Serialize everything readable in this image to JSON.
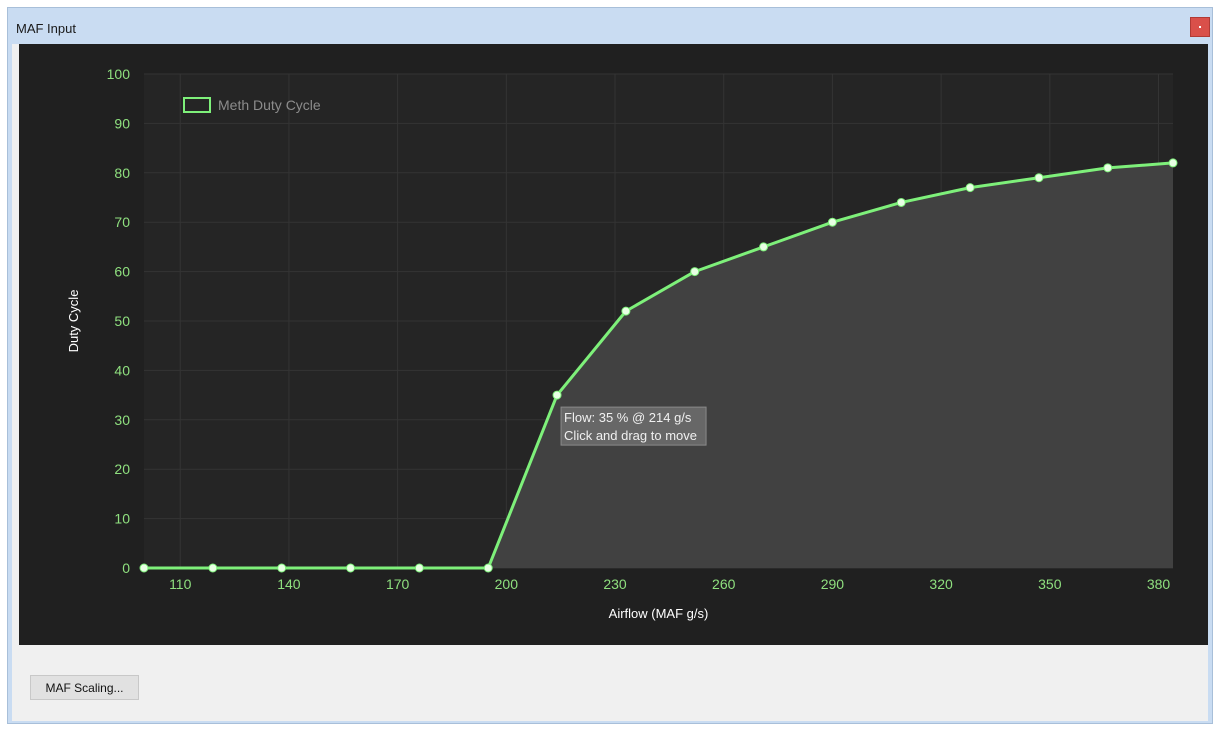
{
  "window": {
    "title": "MAF Input",
    "close_icon": "close-icon"
  },
  "buttons": {
    "maf_scaling_label": "MAF Scaling..."
  },
  "tooltip": {
    "line1": "Flow: 35 % @ 214 g/s",
    "line2": "Click and drag to move"
  },
  "colors": {
    "series_line": "#7ef07a",
    "area_fill": "#414141",
    "plot_bg": "#252525",
    "panel_bg": "#202020",
    "tick_label": "#8fe07f"
  },
  "chart_data": {
    "type": "area",
    "xlabel": "Airflow (MAF g/s)",
    "ylabel": "Duty Cycle",
    "xlim": [
      100,
      384
    ],
    "ylim": [
      0,
      100
    ],
    "x_ticks": [
      110,
      140,
      170,
      200,
      230,
      260,
      290,
      320,
      350,
      380
    ],
    "y_ticks": [
      0,
      10,
      20,
      30,
      40,
      50,
      60,
      70,
      80,
      90,
      100
    ],
    "grid": true,
    "legend_position": "top-left",
    "series": [
      {
        "name": "Meth Duty Cycle",
        "x": [
          100,
          119,
          138,
          157,
          176,
          195,
          214,
          233,
          252,
          271,
          290,
          309,
          328,
          347,
          366,
          384
        ],
        "y": [
          0,
          0,
          0,
          0,
          0,
          0,
          35,
          52,
          60,
          65,
          70,
          74,
          77,
          79,
          81,
          82
        ]
      }
    ]
  }
}
